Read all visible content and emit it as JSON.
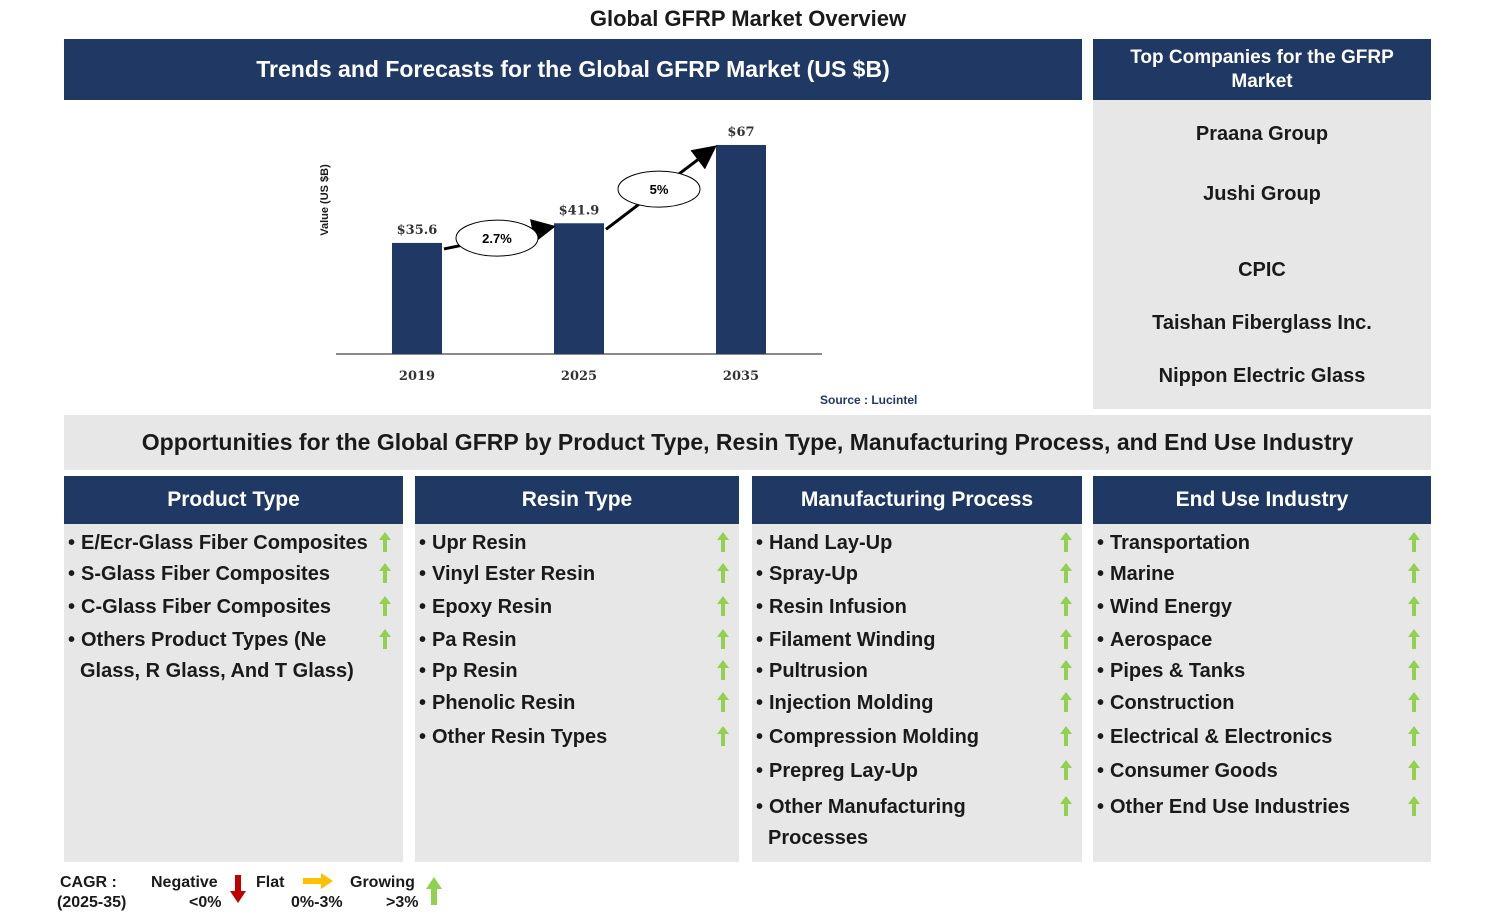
{
  "page_title": "Global GFRP Market Overview",
  "trends_title": "Trends and Forecasts for the Global GFRP Market (US $B)",
  "companies_title": "Top Companies for the GFRP Market",
  "companies": [
    "Praana Group",
    "Jushi Group",
    "CPIC",
    "Taishan Fiberglass Inc.",
    "Nippon Electric Glass"
  ],
  "chart_data": {
    "type": "bar",
    "categories": [
      "2019",
      "2025",
      "2035"
    ],
    "values": [
      35.6,
      41.9,
      67
    ],
    "value_labels": [
      "$35.6",
      "$41.9",
      "$67"
    ],
    "ylabel": "Value (US $B)",
    "ylim": [
      0,
      75
    ],
    "growth_annotations": [
      {
        "from": "2019",
        "to": "2025",
        "label": "2.7%"
      },
      {
        "from": "2025",
        "to": "2035",
        "label": "5%"
      }
    ],
    "source": "Source : Lucintel",
    "bar_color": "#1f3864",
    "grid": false
  },
  "opportunities_title": "Opportunities for the Global GFRP by Product Type, Resin Type, Manufacturing Process, and End Use Industry",
  "segments": [
    {
      "title": "Product Type",
      "items": [
        {
          "text": "E/Ecr-Glass Fiber Composites",
          "trend": "growing"
        },
        {
          "text": "S-Glass Fiber Composites",
          "trend": "growing"
        },
        {
          "text": "C-Glass Fiber Composites",
          "trend": "growing"
        },
        {
          "text": "Others Product Types (Ne",
          "cont": "Glass, R Glass, And T Glass)",
          "trend": "growing"
        }
      ]
    },
    {
      "title": "Resin Type",
      "items": [
        {
          "text": "Upr Resin",
          "trend": "growing"
        },
        {
          "text": "Vinyl Ester Resin",
          "trend": "growing"
        },
        {
          "text": "Epoxy Resin",
          "trend": "growing"
        },
        {
          "text": "Pa Resin",
          "trend": "growing"
        },
        {
          "text": "Pp Resin",
          "trend": "growing"
        },
        {
          "text": "Phenolic Resin",
          "trend": "growing"
        },
        {
          "text": "Other Resin Types",
          "trend": "growing"
        }
      ]
    },
    {
      "title": "Manufacturing Process",
      "items": [
        {
          "text": "Hand Lay-Up",
          "trend": "growing"
        },
        {
          "text": "Spray-Up",
          "trend": "growing"
        },
        {
          "text": "Resin Infusion",
          "trend": "growing"
        },
        {
          "text": "Filament Winding",
          "trend": "growing"
        },
        {
          "text": "Pultrusion",
          "trend": "growing"
        },
        {
          "text": "Injection Molding",
          "trend": "growing"
        },
        {
          "text": "Compression Molding",
          "trend": "growing"
        },
        {
          "text": "Prepreg Lay-Up",
          "trend": "growing"
        },
        {
          "text": "Other Manufacturing",
          "cont": "Processes",
          "trend": "growing"
        }
      ]
    },
    {
      "title": "End Use Industry",
      "items": [
        {
          "text": "Transportation",
          "trend": "growing"
        },
        {
          "text": "Marine",
          "trend": "growing"
        },
        {
          "text": "Wind Energy",
          "trend": "growing"
        },
        {
          "text": "Aerospace",
          "trend": "growing"
        },
        {
          "text": "Pipes & Tanks",
          "trend": "growing"
        },
        {
          "text": "Construction",
          "trend": "growing"
        },
        {
          "text": "Electrical & Electronics",
          "trend": "growing"
        },
        {
          "text": "Consumer Goods",
          "trend": "growing"
        },
        {
          "text": "Other End Use Industries",
          "trend": "growing"
        }
      ]
    }
  ],
  "legend": {
    "cagr_label": "CAGR :",
    "cagr_period": "(2025-35)",
    "negative_label": "Negative",
    "negative_range": "<0%",
    "flat_label": "Flat",
    "flat_range": "0%-3%",
    "growing_label": "Growing",
    "growing_range": ">3%",
    "negative_color": "#c00000",
    "flat_color": "#ffc000",
    "growing_color": "#92d050"
  }
}
